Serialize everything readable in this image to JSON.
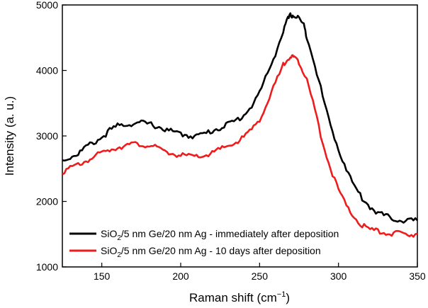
{
  "chart_data": {
    "type": "line",
    "xlabel": "Raman shift (cm",
    "xlabel_sup": "−1",
    "xlabel_end": ")",
    "ylabel": "Intensity (a. u.)",
    "xlim": [
      125,
      350
    ],
    "ylim": [
      1000,
      5000
    ],
    "xticks": [
      150,
      200,
      250,
      300,
      350
    ],
    "xtick_labels": [
      "150",
      "200",
      "250",
      "300",
      "350"
    ],
    "yticks": [
      1000,
      2000,
      3000,
      4000,
      5000
    ],
    "ytick_labels": [
      "1000",
      "2000",
      "3000",
      "4000",
      "5000"
    ],
    "legend_position": "bottom-left",
    "series": [
      {
        "name_prefix": "SiO",
        "name_sub": "2",
        "name_suffix": "/5 nm Ge/20 nm Ag - immediately after deposition",
        "color": "#000000",
        "x": [
          125,
          130,
          135,
          140,
          145,
          150,
          155,
          160,
          165,
          170,
          175,
          180,
          185,
          190,
          195,
          200,
          205,
          210,
          215,
          220,
          225,
          230,
          235,
          240,
          245,
          250,
          255,
          260,
          265,
          268,
          270,
          272,
          275,
          278,
          280,
          285,
          290,
          295,
          300,
          305,
          310,
          315,
          320,
          325,
          330,
          335,
          340,
          345,
          350
        ],
        "y": [
          2620,
          2680,
          2730,
          2830,
          2900,
          2980,
          3080,
          3150,
          3180,
          3190,
          3200,
          3180,
          3150,
          3100,
          3060,
          3030,
          3010,
          3000,
          3030,
          3080,
          3130,
          3180,
          3230,
          3320,
          3460,
          3660,
          3950,
          4260,
          4600,
          4780,
          4850,
          4830,
          4800,
          4680,
          4520,
          4100,
          3600,
          3150,
          2800,
          2500,
          2230,
          2050,
          1920,
          1830,
          1770,
          1740,
          1710,
          1710,
          1710
        ]
      },
      {
        "name_prefix": "SiO",
        "name_sub": "2",
        "name_suffix": "/5 nm Ge/20 nm Ag - 10 days after deposition",
        "color": "#ee1c1c",
        "x": [
          125,
          130,
          135,
          140,
          145,
          150,
          155,
          160,
          165,
          170,
          175,
          180,
          185,
          190,
          195,
          200,
          205,
          210,
          215,
          220,
          225,
          230,
          235,
          240,
          245,
          250,
          255,
          260,
          265,
          268,
          270,
          272,
          275,
          278,
          280,
          285,
          290,
          295,
          300,
          305,
          310,
          315,
          320,
          325,
          330,
          335,
          340,
          345,
          350
        ],
        "y": [
          2460,
          2500,
          2560,
          2620,
          2680,
          2740,
          2790,
          2830,
          2860,
          2870,
          2870,
          2860,
          2810,
          2760,
          2730,
          2700,
          2690,
          2680,
          2700,
          2740,
          2790,
          2850,
          2900,
          2980,
          3100,
          3260,
          3500,
          3800,
          4080,
          4200,
          4210,
          4190,
          4130,
          3980,
          3850,
          3400,
          2900,
          2500,
          2180,
          1920,
          1760,
          1630,
          1570,
          1540,
          1520,
          1510,
          1500,
          1500,
          1510
        ]
      }
    ]
  }
}
